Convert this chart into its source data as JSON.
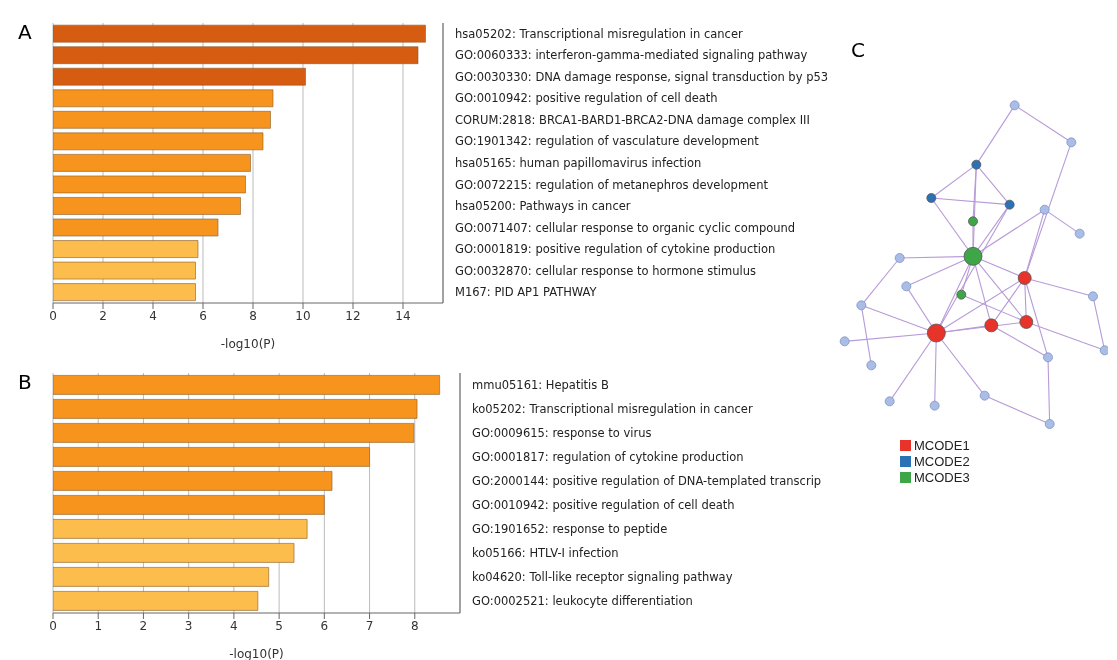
{
  "chart_data": [
    {
      "type": "bar",
      "title": "A",
      "orientation": "horizontal",
      "xlabel": "-log10(P)",
      "categories": [
        "hsa05202: Transcriptional misregulation in cancer",
        "GO:0060333: interferon-gamma-mediated signaling pathway",
        "GO:0030330: DNA damage response, signal transduction by p53",
        "GO:0010942: positive regulation of cell death",
        "CORUM:2818: BRCA1-BARD1-BRCA2-DNA damage complex III",
        "GO:1901342: regulation of vasculature development",
        "hsa05165: human papillomavirus infection",
        "GO:0072215: regulation of metanephros development",
        "hsa05200: Pathways in cancer",
        "GO:0071407: cellular response to organic cyclic compound",
        "GO:0001819: positive regulation of cytokine production",
        "GO:0032870: cellular response to hormone stimulus",
        "M167: PID AP1 PATHWAY"
      ],
      "values": [
        14.9,
        14.6,
        10.1,
        8.8,
        8.7,
        8.4,
        7.9,
        7.7,
        7.5,
        6.6,
        5.8,
        5.7,
        5.7
      ],
      "colors": [
        "#d65c12",
        "#d65c12",
        "#d65c12",
        "#f7941d",
        "#f7941d",
        "#f7941d",
        "#f7941d",
        "#f7941d",
        "#f7941d",
        "#f7941d",
        "#fcbd4c",
        "#fcbd4c",
        "#fcbd4c"
      ],
      "xlim": [
        0,
        15.6
      ],
      "xticks": [
        0,
        2,
        4,
        6,
        8,
        10,
        12,
        14
      ],
      "grid": "x"
    },
    {
      "type": "bar",
      "title": "B",
      "orientation": "horizontal",
      "xlabel": "-log10(P)",
      "categories": [
        "mmu05161: Hepatitis B",
        "ko05202: Transcriptional misregulation in cancer",
        "GO:0009615: response to virus",
        "GO:0001817: regulation of cytokine production",
        "GO:2000144: positive regulation of DNA-templated transcrip",
        "GO:0010942: positive regulation of cell death",
        "GO:1901652: response to peptide",
        "ko05166: HTLV-I infection",
        "ko04620: Toll-like receptor signaling pathway",
        "GO:0002521: leukocyte differentiation"
      ],
      "values": [
        8.55,
        8.05,
        7.98,
        7.0,
        6.17,
        6.0,
        5.62,
        5.33,
        4.77,
        4.53
      ],
      "colors": [
        "#f7941d",
        "#f7941d",
        "#f7941d",
        "#f7941d",
        "#f7941d",
        "#f7941d",
        "#fcbd4c",
        "#fcbd4c",
        "#fcbd4c",
        "#fcbd4c"
      ],
      "xlim": [
        0,
        9
      ],
      "xticks": [
        0,
        1,
        2,
        3,
        4,
        5,
        6,
        7,
        8
      ],
      "grid": "x"
    },
    {
      "type": "other",
      "title": "C",
      "categories": [
        "MCODE1",
        "MCODE2",
        "MCODE3"
      ],
      "colors": [
        "#e8332a",
        "#2a72b5",
        "#3fa648"
      ]
    }
  ]
}
